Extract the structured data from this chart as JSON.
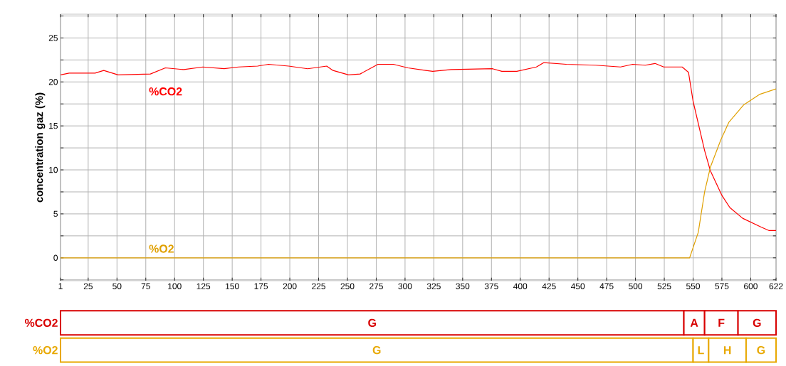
{
  "chart_data": [
    {
      "type": "line",
      "ylabel": "concentration gaz (%)",
      "xlim": [
        1,
        622
      ],
      "ylim": [
        -2.6,
        27.7
      ],
      "xticks": [
        1,
        25,
        50,
        75,
        100,
        125,
        150,
        175,
        200,
        225,
        250,
        275,
        300,
        325,
        350,
        375,
        400,
        425,
        450,
        475,
        500,
        525,
        550,
        575,
        600,
        622
      ],
      "yticks": [
        {
          "value": -2.5,
          "label": null
        },
        0,
        {
          "value": 2.5,
          "label": null
        },
        5,
        {
          "value": 7.5,
          "label": null
        },
        10,
        {
          "value": 12.5,
          "label": null
        },
        15,
        {
          "value": 17.5,
          "label": null
        },
        20,
        {
          "value": 22.5,
          "label": null
        },
        25,
        {
          "value": 27.5,
          "label": null
        }
      ],
      "grid": true,
      "legend": false,
      "marker": "none",
      "line_style": "solid",
      "series": [
        {
          "name": "%CO2",
          "color": "#ff0000",
          "x": [
            1,
            8.5,
            31,
            38.5,
            51,
            79,
            92,
            108,
            124.5,
            143,
            155.5,
            172,
            181.5,
            199,
            215.5,
            232,
            237.5,
            251,
            261,
            276.5,
            290,
            302.5,
            318,
            324,
            340,
            376,
            384,
            397,
            414,
            420.5,
            440,
            465.5,
            487,
            497.5,
            508.5,
            517,
            524.5,
            540.5,
            546,
            550,
            560,
            565,
            575,
            582,
            593,
            609,
            616,
            622
          ],
          "values": [
            20.8,
            21.0,
            21.0,
            21.3,
            20.8,
            20.9,
            21.6,
            21.4,
            21.7,
            21.5,
            21.7,
            21.8,
            22.0,
            21.8,
            21.5,
            21.8,
            21.3,
            20.8,
            20.9,
            22.0,
            22.0,
            21.6,
            21.3,
            21.2,
            21.4,
            21.5,
            21.2,
            21.2,
            21.7,
            22.2,
            22.0,
            21.9,
            21.7,
            22.0,
            21.9,
            22.1,
            21.7,
            21.7,
            21.1,
            17.8,
            12.2,
            9.9,
            7.1,
            5.7,
            4.5,
            3.5,
            3.1,
            3.1
          ]
        },
        {
          "name": "%O2",
          "color": "#e0a000",
          "x": [
            1,
            547,
            554.5,
            560,
            565,
            574,
            581,
            594,
            608,
            622
          ],
          "values": [
            0,
            0,
            2.9,
            7.5,
            10.3,
            13.4,
            15.4,
            17.4,
            18.6,
            19.2
          ]
        }
      ]
    },
    {
      "type": "bar",
      "orientation": "horizontal",
      "stacked": true,
      "categories": [
        "%CO2",
        "%O2"
      ],
      "xlim": [
        1,
        622
      ],
      "tick_labels": "y",
      "series": [
        {
          "colors": [
            "#d80000",
            "#e8a800"
          ],
          "values": [
            542,
            550
          ],
          "value_labels": [
            "G",
            "G"
          ]
        },
        {
          "colors": [
            "#d80000",
            "#e8a800"
          ],
          "values": [
            18,
            13.5
          ],
          "value_labels": [
            "A",
            "L"
          ]
        },
        {
          "colors": [
            "#d80000",
            "#e8a800"
          ],
          "values": [
            29,
            32.5
          ],
          "value_labels": [
            "F",
            "H"
          ]
        },
        {
          "colors": [
            "#d80000",
            "#e8a800"
          ],
          "values": [
            33,
            26
          ],
          "value_labels": [
            "G",
            "G"
          ]
        }
      ]
    }
  ]
}
